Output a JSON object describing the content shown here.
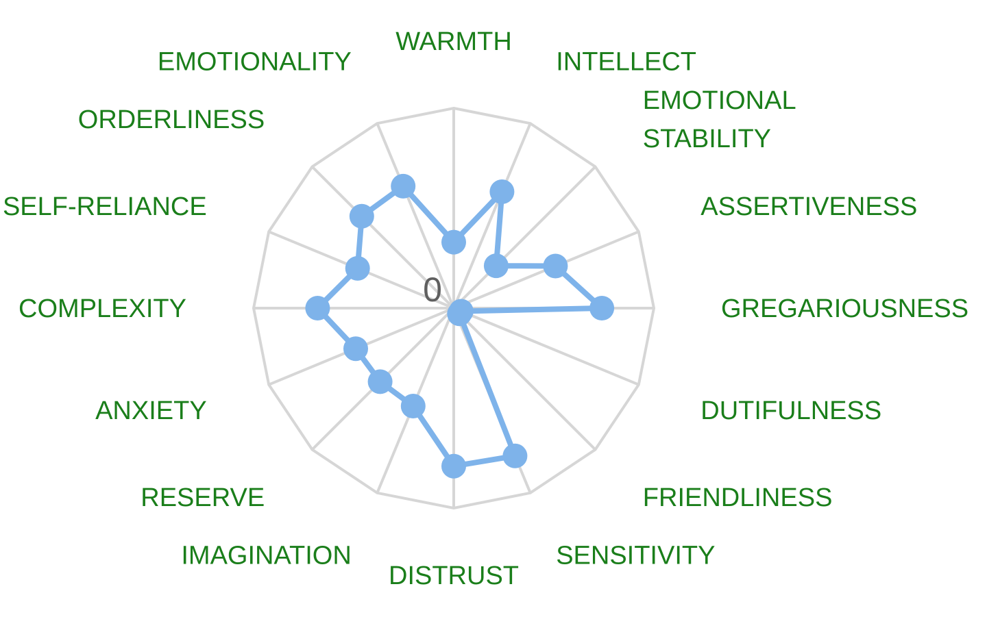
{
  "chart_data": {
    "type": "radar",
    "title": "",
    "categories": [
      "WARMTH",
      "INTELLECT",
      "EMOTIONAL\nSTABILITY",
      "ASSERTIVENESS",
      "GREGARIOUSNESS",
      "DUTIFULNESS",
      "FRIENDLINESS",
      "SENSITIVITY",
      "DISTRUST",
      "IMAGINATION",
      "RESERVE",
      "ANXIETY",
      "COMPLEXITY",
      "SELF-RELIANCE",
      "ORDERLINESS",
      "EMOTIONALITY"
    ],
    "series": [
      {
        "values": [
          0.33,
          0.63,
          0.3,
          0.55,
          0.74,
          0.04,
          0.04,
          0.8,
          0.79,
          0.53,
          0.52,
          0.53,
          0.68,
          0.52,
          0.65,
          0.66
        ]
      }
    ],
    "rlim": [
      0,
      1
    ],
    "rings": 1,
    "center_tick_label": "0",
    "grid": true,
    "colors": {
      "series": "#7eb3ea",
      "grid": "#d6d6d6",
      "labels": "#1a7e1a",
      "tick": "#5f5f5f"
    }
  }
}
